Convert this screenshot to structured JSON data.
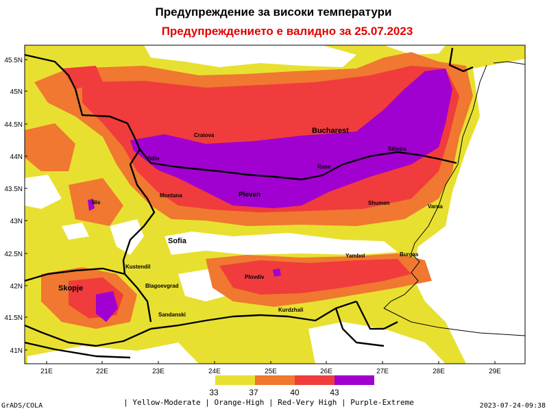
{
  "header": {
    "title": "Предупреждение за високи температури",
    "subtitle": "Предупреждението е валидно за 25.07.2023"
  },
  "axes": {
    "lat_labels": [
      "45.5N",
      "45N",
      "44.5N",
      "44N",
      "43.5N",
      "43N",
      "42.5N",
      "42N",
      "41.5N",
      "41N"
    ],
    "lon_labels": [
      "21E",
      "22E",
      "23E",
      "24E",
      "25E",
      "26E",
      "27E",
      "28E",
      "29E"
    ]
  },
  "cities": [
    {
      "name": "Bucharest"
    },
    {
      "name": "Craiova"
    },
    {
      "name": "Vidin"
    },
    {
      "name": "Pleven"
    },
    {
      "name": "Montana"
    },
    {
      "name": "Ruse"
    },
    {
      "name": "Silistra"
    },
    {
      "name": "Shumen"
    },
    {
      "name": "Varna"
    },
    {
      "name": "Nis"
    },
    {
      "name": "Sofia"
    },
    {
      "name": "Yambol"
    },
    {
      "name": "Burgas"
    },
    {
      "name": "Kustendil"
    },
    {
      "name": "Blagoevgrad"
    },
    {
      "name": "Plovdiv"
    },
    {
      "name": "Skopje"
    },
    {
      "name": "Sandanski"
    },
    {
      "name": "Kurdzhali"
    }
  ],
  "legend": {
    "thresholds": [
      "33",
      "37",
      "40",
      "43"
    ],
    "colors": {
      "yellow": "#e8e030",
      "orange": "#f07830",
      "red": "#f03c3c",
      "purple": "#a000d0"
    },
    "caption": "| Yellow-Moderate | Orange-High | Red-Very High | Purple-Extreme"
  },
  "footer": {
    "left": "GrADS/COLA",
    "right": "2023-07-24-09:38"
  }
}
